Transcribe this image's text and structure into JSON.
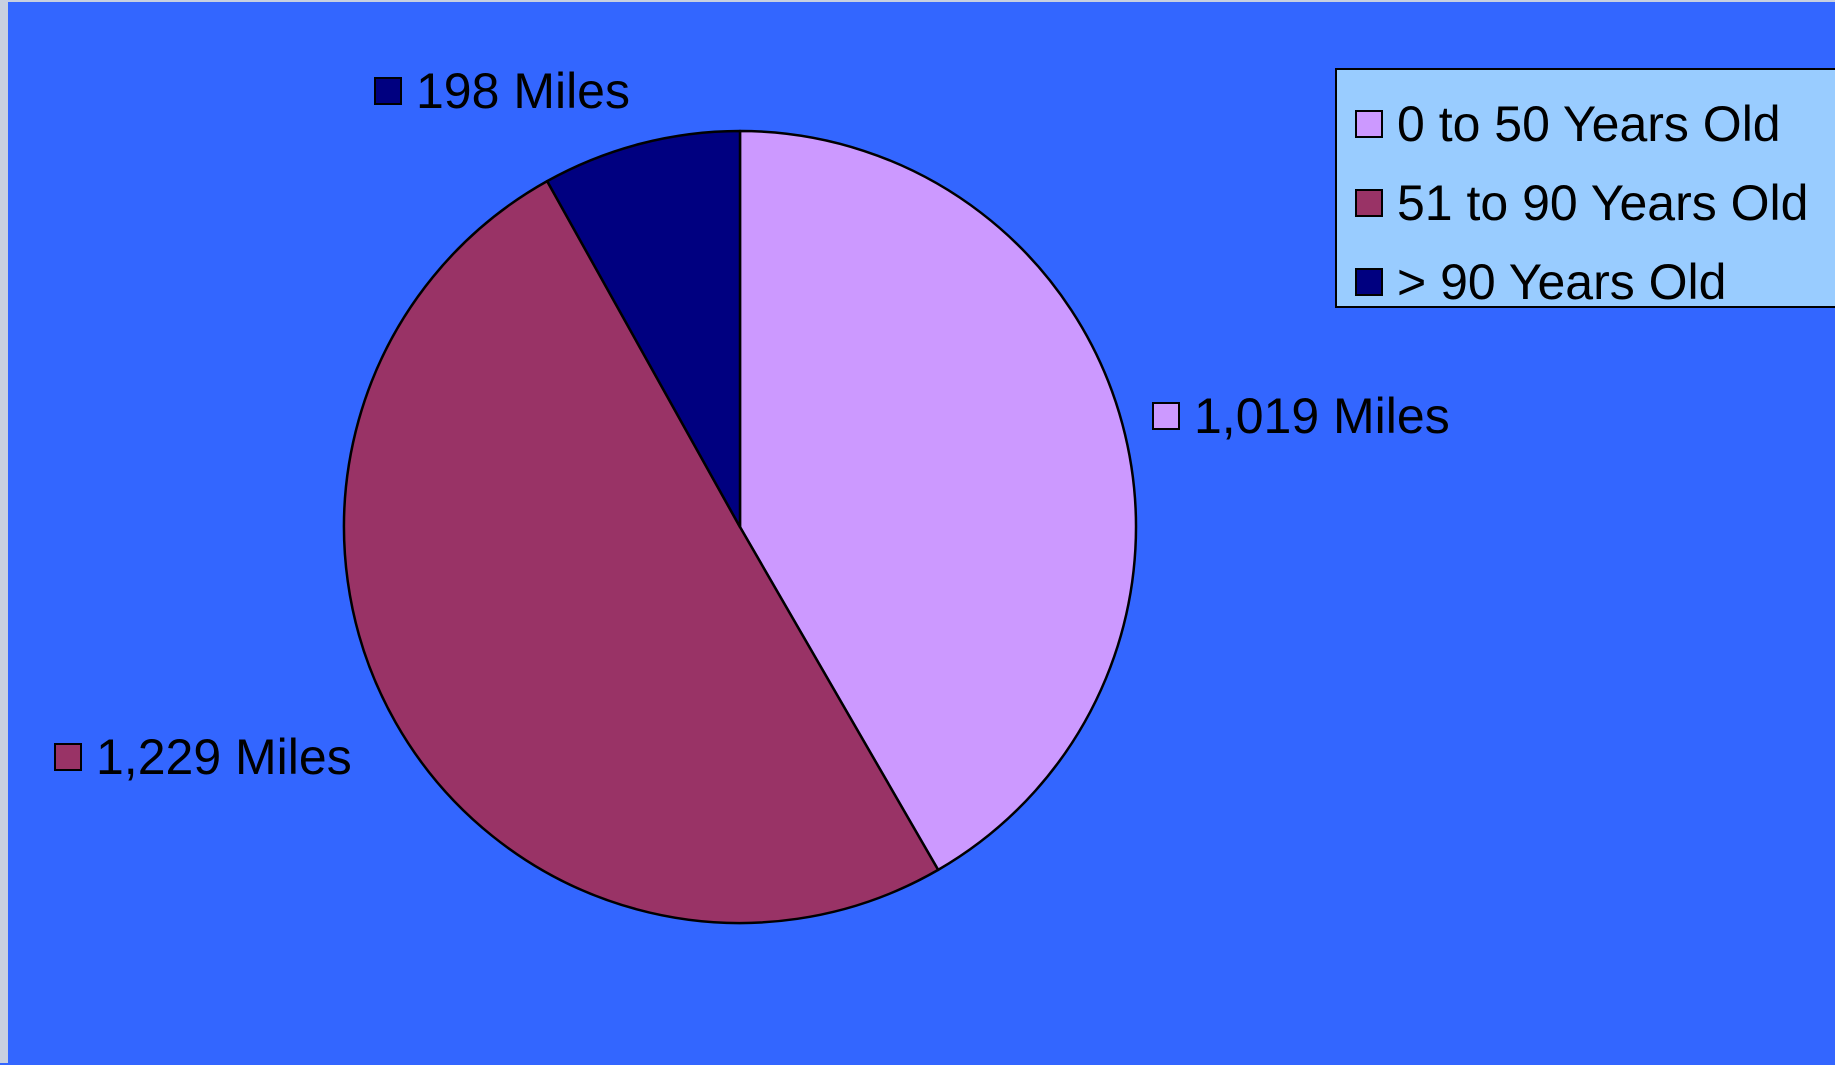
{
  "chart_data": {
    "type": "pie",
    "categories": [
      "0 to 50 Years Old",
      "51 to 90 Years Old",
      "> 90 Years Old"
    ],
    "values": [
      1019,
      1229,
      198
    ],
    "data_labels": [
      "1,019 Miles",
      "1,229 Miles",
      "198 Miles"
    ],
    "colors": [
      "#cc99ff",
      "#993366",
      "#000080"
    ],
    "legend_position": "top-right",
    "start_angle_deg": 0,
    "direction": "clockwise"
  }
}
